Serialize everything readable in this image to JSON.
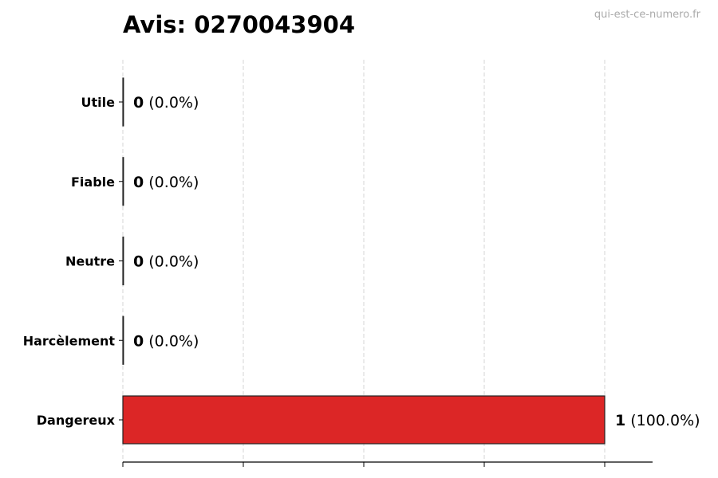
{
  "chart_data": {
    "type": "bar",
    "orientation": "horizontal",
    "title": "Avis: 0270043904",
    "watermark": "qui-est-ce-numero.fr",
    "categories": [
      "Utile",
      "Fiable",
      "Neutre",
      "Harcèlement",
      "Dangereux"
    ],
    "values": [
      0,
      0,
      0,
      0,
      1
    ],
    "value_labels": [
      "0",
      "0",
      "0",
      "0",
      "1"
    ],
    "percent_labels": [
      "(0.0%)",
      "(0.0%)",
      "(0.0%)",
      "(0.0%)",
      "(100.0%)"
    ],
    "colors": [
      "#dc2626",
      "#dc2626",
      "#dc2626",
      "#dc2626",
      "#dc2626"
    ],
    "xlim": [
      0,
      1.1
    ],
    "xticks": [
      0,
      0.25,
      0.5,
      0.75,
      1
    ],
    "xtick_labels_shown": false,
    "grid": "x, dashed",
    "xlabel": "",
    "ylabel": ""
  }
}
